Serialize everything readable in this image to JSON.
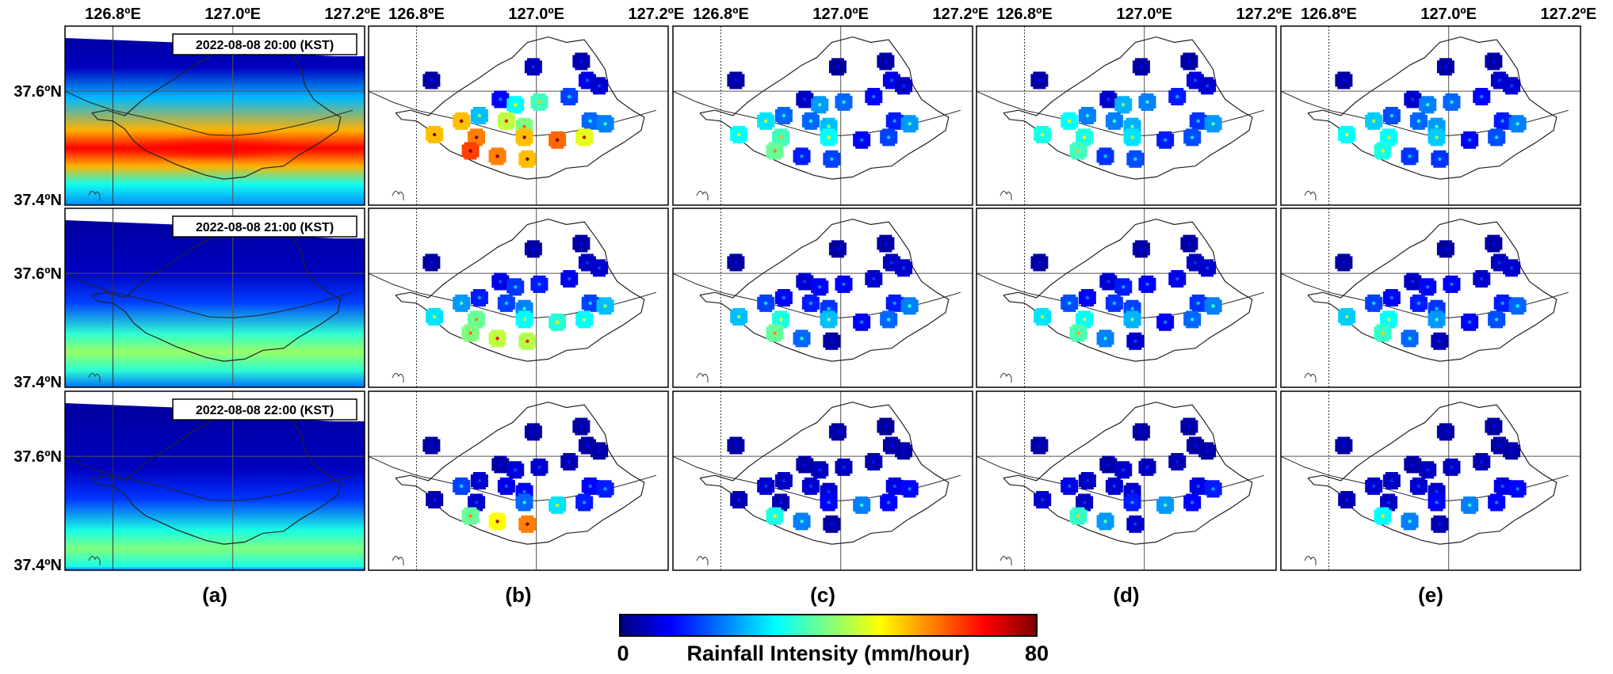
{
  "axes": {
    "lon_ticks": [
      "126.8ºE",
      "127.0ºE",
      "127.2ºE"
    ],
    "lat_ticks": [
      "37.6ºN",
      "37.4ºN"
    ],
    "lon_range": [
      126.72,
      127.22
    ],
    "lat_range": [
      37.39,
      37.72
    ]
  },
  "timestamps": [
    "2022-08-08 20:00 (KST)",
    "2022-08-08 21:00 (KST)",
    "2022-08-08 22:00 (KST)"
  ],
  "panel_labels": [
    "(a)",
    "(b)",
    "(c)",
    "(d)",
    "(e)"
  ],
  "colorbar": {
    "min_label": "0",
    "max_label": "80",
    "title": "Rainfall Intensity (mm/hour)",
    "range": [
      0,
      80
    ],
    "colormap": "jet",
    "colors": [
      "#00007f",
      "#0000ff",
      "#007fff",
      "#00ffff",
      "#7fff7f",
      "#ffff00",
      "#ff7f00",
      "#ff0000",
      "#7f0000"
    ]
  },
  "radar_field": [
    {
      "time": "2022-08-08 20:00 (KST)",
      "band_center_lat": 37.495,
      "peak_intensity": 70
    },
    {
      "time": "2022-08-08 21:00 (KST)",
      "band_center_lat": 37.455,
      "peak_intensity": 42
    },
    {
      "time": "2022-08-08 22:00 (KST)",
      "band_center_lat": 37.43,
      "peak_intensity": 40
    }
  ],
  "stations": [
    {
      "lon": 126.825,
      "lat": 37.62
    },
    {
      "lon": 126.995,
      "lat": 37.645
    },
    {
      "lon": 127.075,
      "lat": 37.655
    },
    {
      "lon": 127.085,
      "lat": 37.62
    },
    {
      "lon": 126.94,
      "lat": 37.585
    },
    {
      "lon": 126.905,
      "lat": 37.555
    },
    {
      "lon": 126.965,
      "lat": 37.575
    },
    {
      "lon": 127.005,
      "lat": 37.58
    },
    {
      "lon": 127.055,
      "lat": 37.59
    },
    {
      "lon": 127.105,
      "lat": 37.61
    },
    {
      "lon": 126.875,
      "lat": 37.545
    },
    {
      "lon": 126.95,
      "lat": 37.545
    },
    {
      "lon": 126.98,
      "lat": 37.535
    },
    {
      "lon": 127.09,
      "lat": 37.545
    },
    {
      "lon": 127.115,
      "lat": 37.54
    },
    {
      "lon": 126.83,
      "lat": 37.52
    },
    {
      "lon": 126.9,
      "lat": 37.515
    },
    {
      "lon": 126.98,
      "lat": 37.515
    },
    {
      "lon": 127.035,
      "lat": 37.51
    },
    {
      "lon": 127.08,
      "lat": 37.515
    },
    {
      "lon": 126.89,
      "lat": 37.49
    },
    {
      "lon": 126.935,
      "lat": 37.48
    },
    {
      "lon": 126.985,
      "lat": 37.475
    }
  ],
  "station_values": {
    "b": [
      [
        3,
        5,
        4,
        8,
        10,
        25,
        30,
        35,
        15,
        6,
        55,
        45,
        40,
        18,
        20,
        55,
        60,
        55,
        62,
        48,
        65,
        60,
        55
      ],
      [
        3,
        3,
        3,
        5,
        8,
        12,
        14,
        12,
        8,
        6,
        22,
        15,
        20,
        15,
        25,
        28,
        38,
        30,
        33,
        30,
        40,
        45,
        44
      ],
      [
        3,
        3,
        3,
        3,
        3,
        6,
        7,
        6,
        4,
        3,
        15,
        8,
        10,
        10,
        12,
        4,
        6,
        18,
        28,
        12,
        38,
        50,
        60
      ]
    ],
    "c": [
      [
        3,
        2,
        3,
        8,
        5,
        18,
        22,
        18,
        10,
        5,
        28,
        18,
        25,
        12,
        22,
        30,
        35,
        30,
        10,
        15,
        38,
        12,
        15
      ],
      [
        3,
        3,
        3,
        5,
        6,
        10,
        10,
        10,
        6,
        6,
        15,
        12,
        14,
        12,
        20,
        25,
        32,
        25,
        10,
        18,
        38,
        18,
        3
      ],
      [
        3,
        3,
        2,
        3,
        3,
        5,
        5,
        5,
        4,
        3,
        6,
        6,
        6,
        8,
        10,
        4,
        4,
        10,
        20,
        10,
        32,
        20,
        3
      ]
    ],
    "d": [
      [
        3,
        3,
        3,
        7,
        6,
        20,
        24,
        20,
        12,
        6,
        30,
        20,
        24,
        14,
        22,
        32,
        32,
        28,
        12,
        16,
        35,
        14,
        16
      ],
      [
        3,
        3,
        3,
        5,
        6,
        10,
        12,
        10,
        8,
        6,
        16,
        14,
        15,
        14,
        20,
        28,
        30,
        24,
        10,
        18,
        36,
        20,
        6
      ],
      [
        3,
        3,
        3,
        3,
        3,
        5,
        6,
        5,
        4,
        3,
        8,
        6,
        6,
        8,
        12,
        6,
        5,
        12,
        22,
        10,
        34,
        22,
        6
      ]
    ],
    "e": [
      [
        3,
        3,
        3,
        6,
        6,
        16,
        20,
        18,
        10,
        6,
        26,
        18,
        22,
        12,
        20,
        30,
        30,
        26,
        10,
        16,
        32,
        14,
        14
      ],
      [
        3,
        3,
        3,
        5,
        5,
        10,
        10,
        10,
        6,
        6,
        15,
        12,
        14,
        12,
        18,
        26,
        30,
        22,
        10,
        16,
        34,
        18,
        4
      ],
      [
        3,
        3,
        3,
        3,
        3,
        5,
        5,
        5,
        4,
        3,
        6,
        6,
        6,
        8,
        10,
        4,
        5,
        10,
        20,
        10,
        30,
        20,
        4
      ]
    ]
  }
}
